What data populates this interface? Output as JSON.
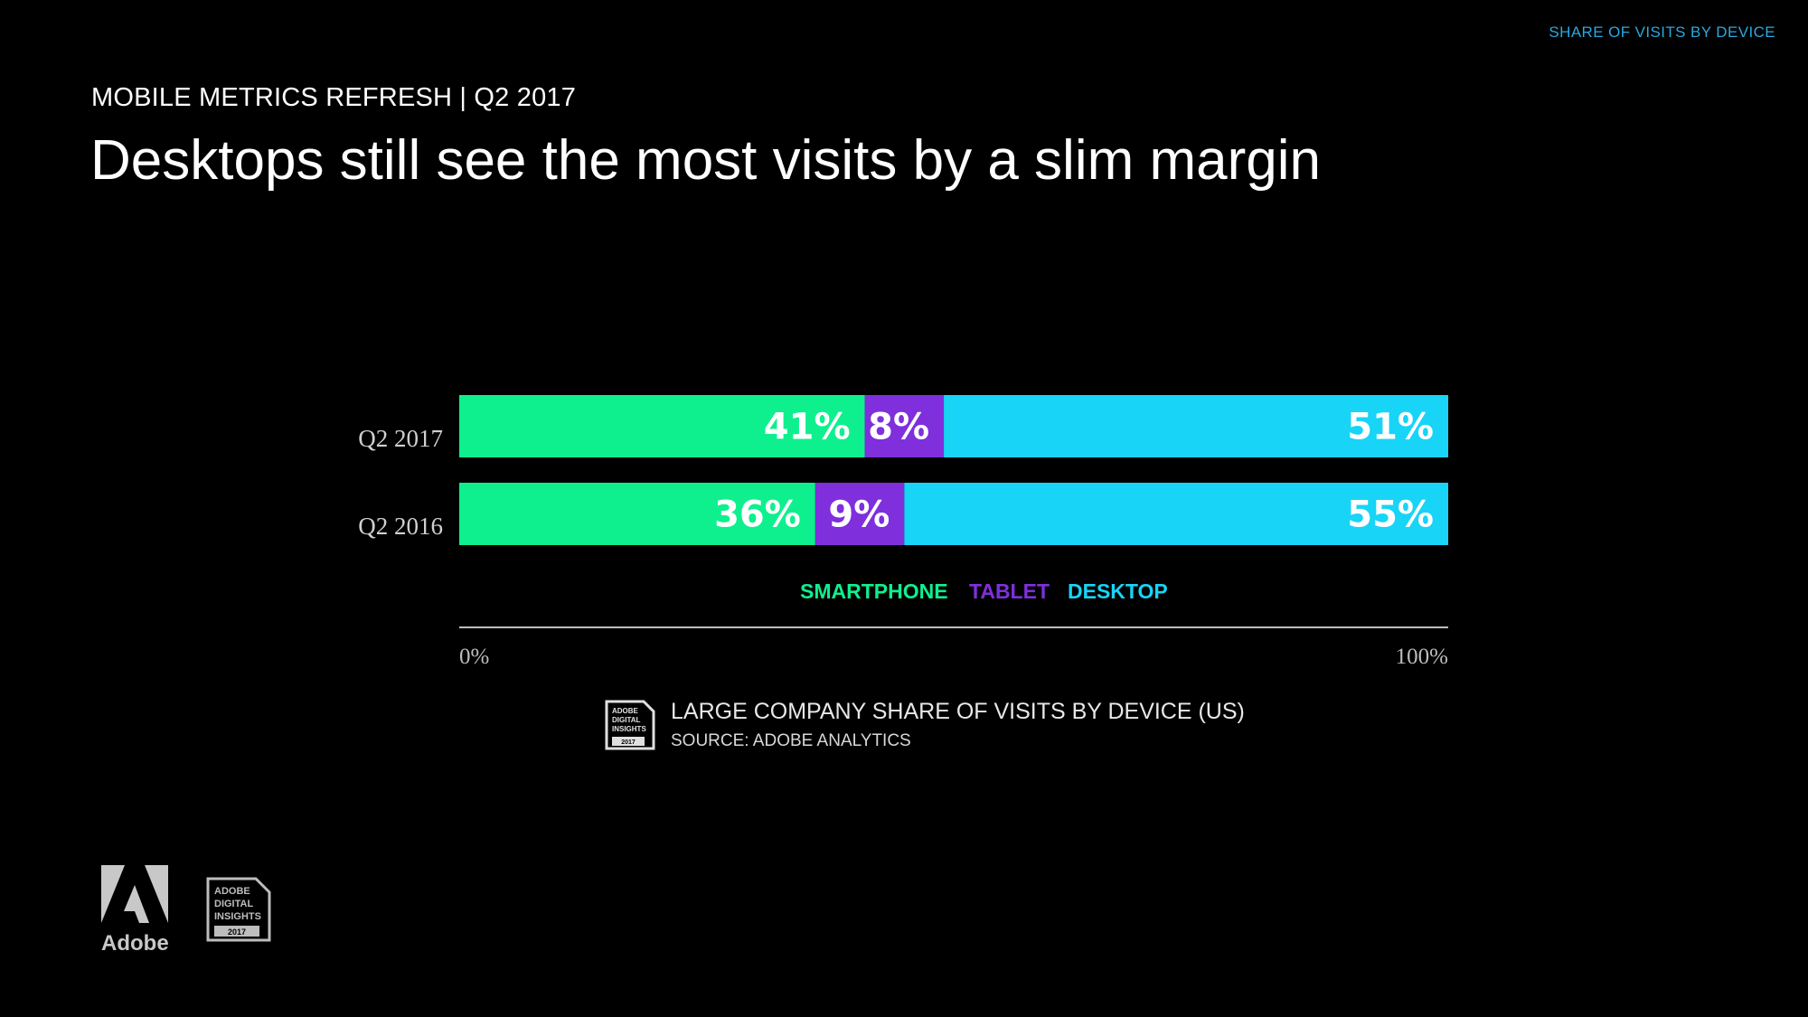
{
  "header": {
    "corner_label": "SHARE OF VISITS BY DEVICE",
    "kicker": "MOBILE METRICS REFRESH | Q2 2017",
    "headline": "Desktops still see the most visits by a slim margin"
  },
  "colors": {
    "smartphone": "#0ef08e",
    "tablet": "#7f2fdc",
    "desktop": "#18d4f6",
    "axis": "#bdbdbd",
    "corner_label": "#2aa8e0"
  },
  "chart_data": {
    "type": "bar",
    "orientation": "horizontal",
    "stacked": true,
    "categories": [
      "Q2 2017",
      "Q2 2016"
    ],
    "series": [
      {
        "name": "SMARTPHONE",
        "values": [
          41,
          36
        ],
        "labels": [
          "41%",
          "36%"
        ]
      },
      {
        "name": "TABLET",
        "values": [
          8,
          9
        ],
        "labels": [
          "8%",
          "9%"
        ]
      },
      {
        "name": "DESKTOP",
        "values": [
          51,
          55
        ],
        "labels": [
          "51%",
          "55%"
        ]
      }
    ],
    "xlim": [
      0,
      100
    ],
    "xticks": [
      "0%",
      "100%"
    ],
    "legend_position": "below bars",
    "grid": false
  },
  "caption": {
    "title": "LARGE COMPANY SHARE OF VISITS BY DEVICE (US)",
    "source": "SOURCE: ADOBE ANALYTICS",
    "badge_lines": [
      "ADOBE",
      "DIGITAL",
      "INSIGHTS",
      "2017"
    ]
  },
  "footer": {
    "adobe_word": "Adobe",
    "badge_lines": [
      "ADOBE",
      "DIGITAL",
      "INSIGHTS",
      "2017"
    ]
  }
}
